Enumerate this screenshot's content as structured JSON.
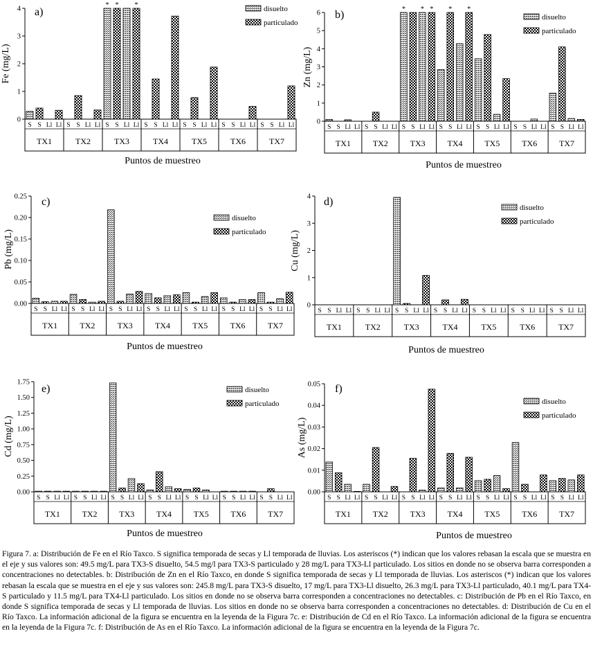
{
  "chart_data": [
    {
      "type": "bar",
      "panel_label": "a)",
      "ylabel": "Fe (mg/L)",
      "xlabel": "Puntos de muestreo",
      "ylim": [
        0,
        4
      ],
      "yticks": [
        0,
        1,
        2,
        3,
        4
      ],
      "sites": [
        "TX1",
        "TX2",
        "TX3",
        "TX4",
        "TX5",
        "TX6",
        "TX7"
      ],
      "seasons": [
        "S",
        "S",
        "Ll",
        "Ll"
      ],
      "legend": [
        "disuelto",
        "particulado"
      ],
      "legend_position": "top-right",
      "series": [
        {
          "name": "disuelto",
          "S": [
            0.28,
            0,
            4.0,
            0,
            0,
            0,
            0
          ],
          "Ll": [
            0,
            0,
            4.0,
            0,
            0,
            0,
            0
          ]
        },
        {
          "name": "particulado",
          "S": [
            0.4,
            0.85,
            4.0,
            1.45,
            0.78,
            0,
            0
          ],
          "Ll": [
            0.32,
            0.33,
            4.0,
            3.72,
            1.88,
            0.46,
            1.2
          ]
        }
      ],
      "stars": [
        "TX3-S-disuelto",
        "TX3-S-particulado",
        "TX3-Ll-particulado"
      ]
    },
    {
      "type": "bar",
      "panel_label": "b)",
      "ylabel": "Zn (mg/L)",
      "xlabel": "Puntos de muestreo",
      "ylim": [
        0,
        6
      ],
      "yticks": [
        0,
        1,
        2,
        3,
        4,
        5,
        6
      ],
      "sites": [
        "TX1",
        "TX2",
        "TX3",
        "TX4",
        "TX5",
        "TX6",
        "TX7"
      ],
      "seasons": [
        "S",
        "S",
        "Ll",
        "Ll"
      ],
      "legend": [
        "disuelto",
        "particulado"
      ],
      "legend_position": "top-right",
      "series": [
        {
          "name": "disuelto",
          "S": [
            0.1,
            0,
            6.0,
            2.85,
            3.45,
            0,
            1.55
          ],
          "Ll": [
            0.08,
            0,
            6.0,
            4.28,
            0.38,
            0.12,
            0.15
          ]
        },
        {
          "name": "particulado",
          "S": [
            0,
            0.5,
            6.0,
            6.0,
            4.78,
            0,
            4.1
          ],
          "Ll": [
            0,
            0,
            6.0,
            6.0,
            2.35,
            0,
            0.1
          ]
        }
      ],
      "stars": [
        "TX3-S-disuelto",
        "TX3-Ll-disuelto",
        "TX3-Ll-particulado",
        "TX4-S-particulado",
        "TX4-Ll-particulado"
      ]
    },
    {
      "type": "bar",
      "panel_label": "c)",
      "ylabel": "Pb (mg/L)",
      "xlabel": "Puntos de muestreo",
      "ylim": [
        0,
        0.25
      ],
      "yticks": [
        0.0,
        0.05,
        0.1,
        0.15,
        0.2,
        0.25
      ],
      "sites": [
        "TX1",
        "TX2",
        "TX3",
        "TX4",
        "TX5",
        "TX6",
        "TX7"
      ],
      "seasons": [
        "S",
        "S",
        "Ll",
        "Ll"
      ],
      "legend": [
        "disuelto",
        "particulado"
      ],
      "legend_position": "top-right",
      "series": [
        {
          "name": "disuelto",
          "S": [
            0.012,
            0.021,
            0.218,
            0.023,
            0.025,
            0.013,
            0.025
          ],
          "Ll": [
            0.005,
            0.003,
            0.022,
            0.018,
            0.016,
            0.009,
            0.011
          ]
        },
        {
          "name": "particulado",
          "S": [
            0.004,
            0.009,
            0.005,
            0.013,
            0.003,
            0.003,
            0.003
          ],
          "Ll": [
            0.005,
            0.005,
            0.028,
            0.02,
            0.025,
            0.009,
            0.026
          ]
        }
      ],
      "stars": []
    },
    {
      "type": "bar",
      "panel_label": "d)",
      "ylabel": "Cu (mg/L)",
      "xlabel": "Puntos de muestreo",
      "ylim": [
        0,
        4
      ],
      "yticks": [
        0,
        1,
        2,
        3,
        4
      ],
      "sites": [
        "TX1",
        "TX2",
        "TX3",
        "TX4",
        "TX5",
        "TX6",
        "TX7"
      ],
      "seasons": [
        "S",
        "S",
        "Ll",
        "Ll"
      ],
      "legend": [
        "disuelto",
        "particulado"
      ],
      "legend_position": "top-right",
      "series": [
        {
          "name": "disuelto",
          "S": [
            0,
            0,
            3.95,
            0,
            0,
            0,
            0
          ],
          "Ll": [
            0,
            0,
            0,
            0,
            0,
            0,
            0
          ]
        },
        {
          "name": "particulado",
          "S": [
            0,
            0,
            0.05,
            0.18,
            0,
            0,
            0
          ],
          "Ll": [
            0,
            0,
            1.08,
            0.2,
            0,
            0,
            0
          ]
        }
      ],
      "stars": []
    },
    {
      "type": "bar",
      "panel_label": "e)",
      "ylabel": "Cd (mg/L)",
      "xlabel": "Puntos de muestreo",
      "ylim": [
        0,
        1.75
      ],
      "yticks": [
        0.0,
        0.25,
        0.5,
        0.75,
        1.0,
        1.25,
        1.5,
        1.75
      ],
      "sites": [
        "TX1",
        "TX2",
        "TX3",
        "TX4",
        "TX5",
        "TX6",
        "TX7"
      ],
      "seasons": [
        "S",
        "S",
        "Ll",
        "Ll"
      ],
      "legend": [
        "disuelto",
        "particulado"
      ],
      "legend_position": "top-right",
      "series": [
        {
          "name": "disuelto",
          "S": [
            0.01,
            0.01,
            1.73,
            0.03,
            0.04,
            0.01,
            0
          ],
          "Ll": [
            0.01,
            0.01,
            0.21,
            0.08,
            0.03,
            0.01,
            0
          ]
        },
        {
          "name": "particulado",
          "S": [
            0.01,
            0.01,
            0.06,
            0.32,
            0.06,
            0.01,
            0.05
          ],
          "Ll": [
            0.01,
            0.01,
            0.13,
            0.05,
            0,
            0.01,
            0
          ]
        }
      ],
      "stars": []
    },
    {
      "type": "bar",
      "panel_label": "f)",
      "ylabel": "As (mg/L)",
      "xlabel": "Puntos de muestreo",
      "ylim": [
        0,
        0.05
      ],
      "yticks": [
        0.0,
        0.01,
        0.02,
        0.03,
        0.04,
        0.05
      ],
      "sites": [
        "TX1",
        "TX2",
        "TX3",
        "TX4",
        "TX5",
        "TX6",
        "TX7"
      ],
      "seasons": [
        "S",
        "S",
        "Ll",
        "Ll"
      ],
      "legend": [
        "disuelto",
        "particulado"
      ],
      "legend_position": "top-right",
      "series": [
        {
          "name": "disuelto",
          "S": [
            0.0138,
            0.0035,
            0,
            0.0018,
            0.0052,
            0.0228,
            0.0052
          ],
          "Ll": [
            0.0035,
            0,
            0.0008,
            0.0018,
            0.0075,
            0,
            0.0055
          ]
        },
        {
          "name": "particulado",
          "S": [
            0.0088,
            0.0205,
            0.0155,
            0.0178,
            0.0058,
            0.0035,
            0.0062
          ],
          "Ll": [
            0.0002,
            0.0025,
            0.0475,
            0.016,
            0.0015,
            0.0078,
            0.0078
          ]
        }
      ],
      "stars": []
    }
  ],
  "caption": "Figura 7. a: Distribución de Fe en el Río Taxco. S significa temporada de secas y Ll temporada de lluvias. Los asteriscos (*) indican que los valores rebasan la escala que se muestra en el eje y sus valores son: 49.5 mg/L para TX3-S disuelto, 54.5 mg/l para TX3-S particulado y 28 mg/L para TX3-Ll particulado. Los sitios en donde no se observa barra corresponden a concentraciones no detectables. b: Distribución de Zn en el Río Taxco, en donde S significa temporada de secas y Ll temporada de lluvias. Los asteriscos (*) indican que los valores rebasan la escala que se muestra en el eje y sus valores son: 245.8 mg/L para TX3-S disuelto, 17 mg/L para TX3-Ll disuelto, 26.3 mg/L para TX3-Ll particulado, 40.1 mg/L para TX4-S particulado y 11.5 mg/L para TX4-Ll particulado. Los sitios en donde no se observa barra corresponden a concentraciones no detectables. c: Distribución de Pb en el Río Taxco, en donde S significa temporada de secas y Ll temporada de lluvias. Los sitios en donde no se observa barra corresponden a concentraciones no detectables. d: Distribución de Cu en el Río Taxco. La información adicional de la figura se encuentra en la leyenda de la Figura 7c. e: Distribución de Cd en el Río Taxco. La información adicional de la figura se encuentra en la leyenda de la Figura 7c. f: Distribución de As en el Río Taxco. La información adicional de la figura se encuentra en la leyenda de la Figura 7c.",
  "colors": {
    "axis": "#000000",
    "disuelto_fill": "#8c8c8c",
    "particulado_fill": "#1a1a1a"
  }
}
